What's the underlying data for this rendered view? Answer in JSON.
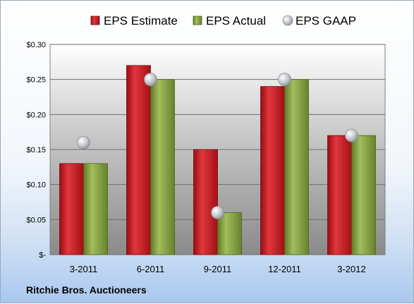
{
  "chart_data": {
    "type": "bar",
    "categories": [
      "3-2011",
      "6-2011",
      "9-2011",
      "12-2011",
      "3-2012"
    ],
    "series": [
      {
        "name": "EPS Estimate",
        "kind": "bar",
        "color": "#c0161c",
        "values": [
          0.13,
          0.27,
          0.15,
          0.24,
          0.17
        ]
      },
      {
        "name": "EPS Actual",
        "kind": "bar",
        "color": "#7d9a3a",
        "values": [
          0.13,
          0.25,
          0.06,
          0.25,
          0.17
        ]
      },
      {
        "name": "EPS GAAP",
        "kind": "marker",
        "color": "#b8bcc2",
        "values": [
          0.16,
          0.25,
          0.06,
          0.25,
          0.17
        ]
      }
    ],
    "ylim": [
      0,
      0.3
    ],
    "yticks": [
      0,
      0.05,
      0.1,
      0.15,
      0.2,
      0.25,
      0.3
    ],
    "ytick_labels": [
      "$-",
      "$0.05",
      "$0.10",
      "$0.15",
      "$0.20",
      "$0.25",
      "$0.30"
    ],
    "grid": true,
    "legend_position": "top"
  },
  "company": "Ritchie Bros. Auctioneers"
}
